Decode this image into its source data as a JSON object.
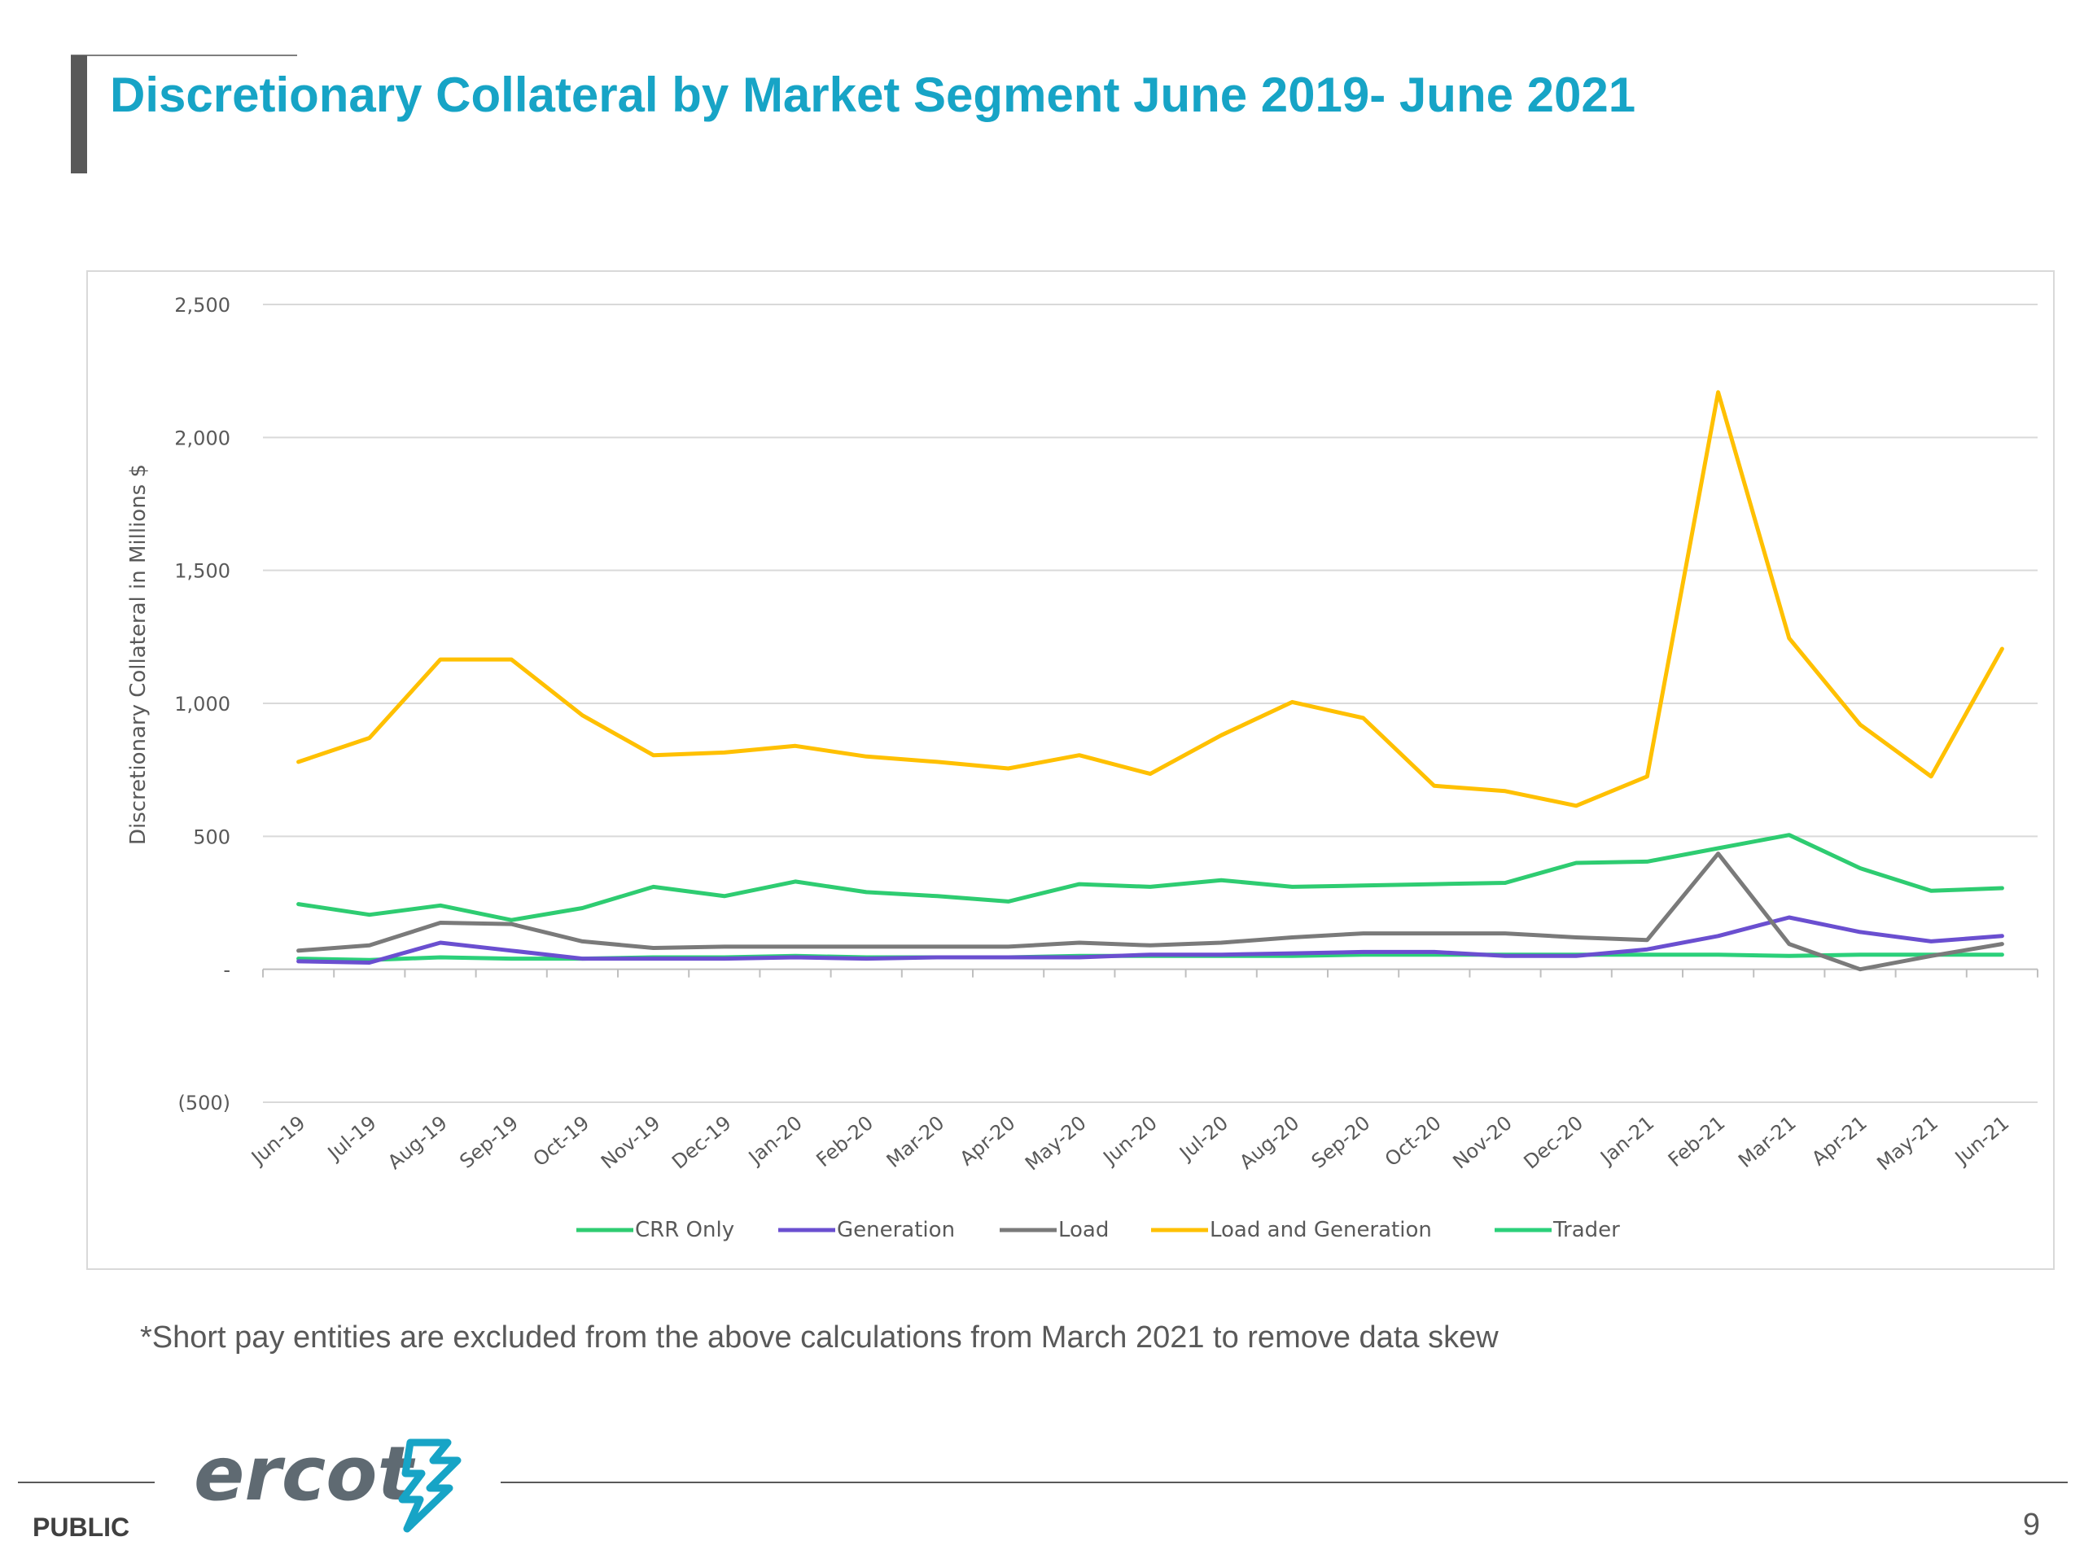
{
  "slide": {
    "title": "Discretionary Collateral by Market Segment June 2019- June 2021",
    "footnote": "*Short pay entities are excluded from the above calculations from March 2021 to remove data skew",
    "classification": "PUBLIC",
    "page_number": "9",
    "logo_text": "ercot"
  },
  "colors": {
    "title": "#17a4c6",
    "crr_only": "#2ecc71",
    "generation": "#6a4fd0",
    "load": "#7a7a7a",
    "load_and_generation": "#ffc000",
    "trader": "#2bd07a"
  },
  "chart_data": {
    "type": "line",
    "title": "",
    "xlabel": "",
    "ylabel": "Discretionary Collateral in Millions $",
    "ylim": [
      -500,
      2500
    ],
    "yticks": [
      -500,
      0,
      500,
      1000,
      1500,
      2000,
      2500
    ],
    "ytick_labels": [
      "(500)",
      "-",
      "500",
      "1,000",
      "1,500",
      "2,000",
      "2,500"
    ],
    "grid": "horizontal",
    "legend_position": "bottom",
    "categories": [
      "Jun-19",
      "Jul-19",
      "Aug-19",
      "Sep-19",
      "Oct-19",
      "Nov-19",
      "Dec-19",
      "Jan-20",
      "Feb-20",
      "Mar-20",
      "Apr-20",
      "May-20",
      "Jun-20",
      "Jul-20",
      "Aug-20",
      "Sep-20",
      "Oct-20",
      "Nov-20",
      "Dec-20",
      "Jan-21",
      "Feb-21",
      "Mar-21",
      "Apr-21",
      "May-21",
      "Jun-21"
    ],
    "series": [
      {
        "name": "CRR Only",
        "color_key": "crr_only",
        "values": [
          245,
          205,
          240,
          185,
          230,
          310,
          275,
          330,
          290,
          275,
          255,
          320,
          310,
          335,
          310,
          315,
          320,
          325,
          400,
          405,
          455,
          505,
          380,
          295,
          305
        ]
      },
      {
        "name": "Generation",
        "color_key": "generation",
        "values": [
          30,
          25,
          100,
          70,
          40,
          40,
          40,
          45,
          40,
          45,
          45,
          45,
          55,
          55,
          60,
          65,
          65,
          50,
          50,
          75,
          125,
          195,
          140,
          105,
          125
        ]
      },
      {
        "name": "Load",
        "color_key": "load",
        "values": [
          70,
          90,
          175,
          170,
          105,
          80,
          85,
          85,
          85,
          85,
          85,
          100,
          90,
          100,
          120,
          135,
          135,
          135,
          120,
          110,
          435,
          95,
          0,
          50,
          95
        ]
      },
      {
        "name": "Load and Generation",
        "color_key": "load_and_generation",
        "values": [
          780,
          870,
          1165,
          1165,
          955,
          805,
          815,
          840,
          800,
          780,
          755,
          805,
          735,
          880,
          1005,
          945,
          690,
          670,
          615,
          725,
          2170,
          1245,
          920,
          725,
          1205
        ]
      },
      {
        "name": "Trader",
        "color_key": "trader",
        "values": [
          40,
          35,
          45,
          40,
          40,
          45,
          45,
          50,
          45,
          45,
          45,
          50,
          50,
          50,
          50,
          55,
          55,
          55,
          55,
          55,
          55,
          50,
          55,
          55,
          55
        ]
      }
    ]
  }
}
